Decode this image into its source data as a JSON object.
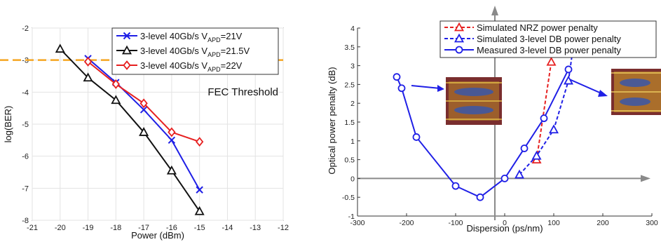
{
  "chart_data": [
    {
      "type": "line",
      "title": "",
      "xlabel": "Power (dBm)",
      "ylabel": "log(BER)",
      "xlim": [
        -21,
        -12
      ],
      "ylim": [
        -8,
        -2
      ],
      "x_ticks": [
        -21,
        -20,
        -19,
        -18,
        -17,
        -16,
        -15,
        -14,
        -13,
        -12
      ],
      "y_ticks": [
        -8,
        -7,
        -6,
        -5,
        -4,
        -3,
        -2
      ],
      "grid": true,
      "legend_position": "top-right",
      "series": [
        {
          "legend_prefix": "3-level 40Gb/s V",
          "legend_sub": "APD",
          "legend_suffix": "=21V",
          "color": "#1f1fe6",
          "marker": "x",
          "dash": "",
          "x": [
            -19,
            -18,
            -17,
            -16,
            -15
          ],
          "y": [
            -2.95,
            -3.7,
            -4.55,
            -5.5,
            -7.05
          ]
        },
        {
          "legend_prefix": "3-level 40Gb/s V",
          "legend_sub": "APD",
          "legend_suffix": "=21.5V",
          "color": "#111111",
          "marker": "triangle",
          "dash": "",
          "x": [
            -20,
            -19,
            -18,
            -17,
            -16,
            -15
          ],
          "y": [
            -2.65,
            -3.55,
            -4.25,
            -5.25,
            -6.45,
            -7.72
          ]
        },
        {
          "legend_prefix": "3-level 40Gb/s V",
          "legend_sub": "APD",
          "legend_suffix": "=22V",
          "color": "#e62020",
          "marker": "diamond",
          "dash": "",
          "x": [
            -19,
            -18,
            -17,
            -16,
            -15
          ],
          "y": [
            -3.05,
            -3.75,
            -4.35,
            -5.25,
            -5.55
          ]
        }
      ],
      "reference_line": {
        "y": -3,
        "label": "FEC Threshold",
        "color": "#f5a623"
      }
    },
    {
      "type": "line",
      "title": "",
      "xlabel": "Dispersion (ps/nm)",
      "ylabel": "Optical power penalty (dB)",
      "xlim": [
        -300,
        300
      ],
      "ylim": [
        -1,
        4
      ],
      "x_ticks": [
        -300,
        -200,
        -100,
        0,
        100,
        200,
        300
      ],
      "y_ticks": [
        -1,
        -0.5,
        0,
        0.5,
        1,
        1.5,
        2,
        2.5,
        3,
        3.5,
        4
      ],
      "grid": false,
      "legend_position": "top-right",
      "series": [
        {
          "name": "Simulated NRZ power penalty",
          "color": "#e62020",
          "marker": "triangle",
          "dash": "5,3",
          "x": [
            65,
            95
          ],
          "y": [
            0.5,
            3.1
          ]
        },
        {
          "name": "Simulated 3-level DB power penalty",
          "color": "#1f1fe6",
          "marker": "triangle",
          "dash": "5,3",
          "x": [
            30,
            65,
            100,
            130,
            145
          ],
          "y": [
            0.1,
            0.6,
            1.3,
            2.6,
            4.0
          ]
        },
        {
          "name": "Measured 3-level DB power penalty",
          "color": "#1f1fe6",
          "marker": "circle",
          "dash": "",
          "x": [
            -220,
            -210,
            -180,
            -100,
            -50,
            0,
            40,
            80,
            130
          ],
          "y": [
            2.7,
            2.4,
            1.1,
            -0.2,
            -0.5,
            0.0,
            0.8,
            1.6,
            2.9
          ]
        }
      ]
    }
  ]
}
